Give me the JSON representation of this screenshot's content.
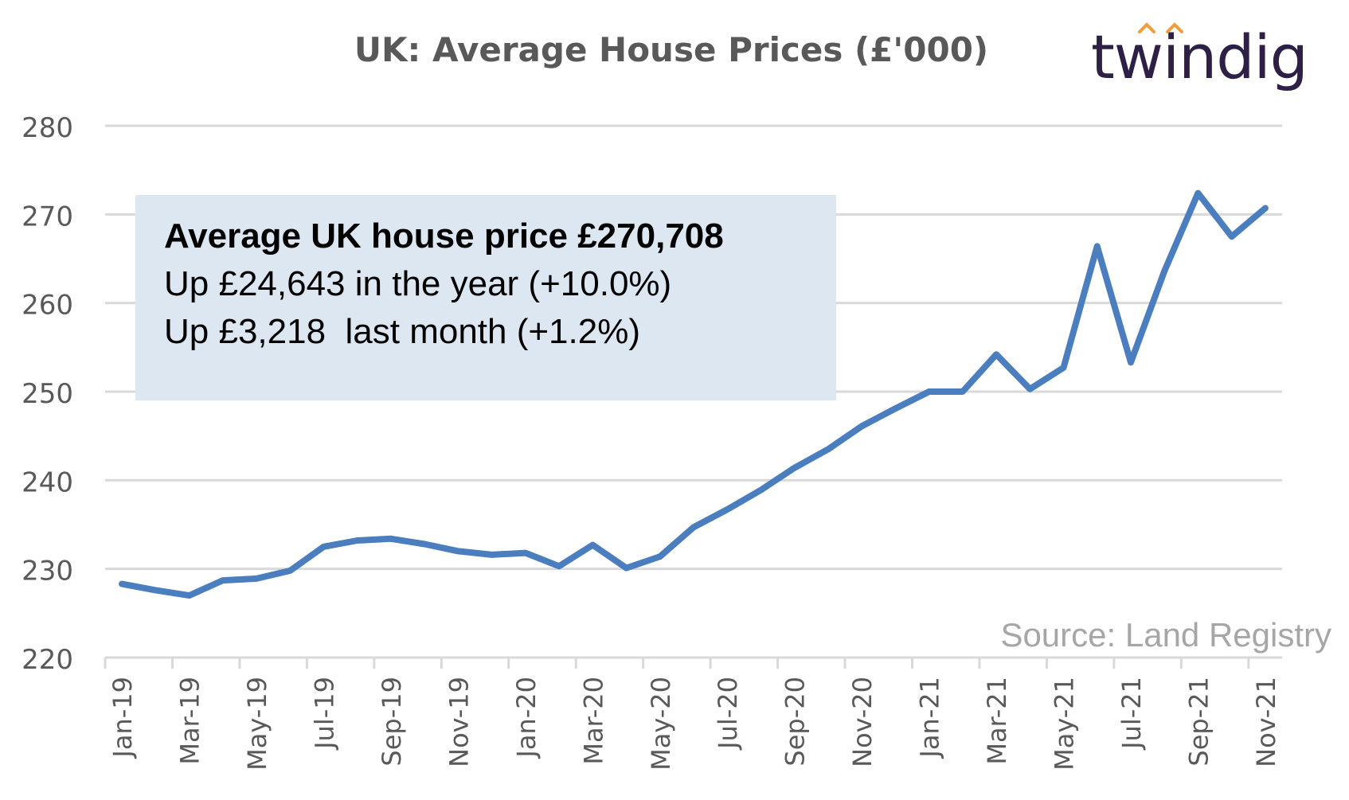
{
  "title": "UK: Average House Prices (£'000)",
  "logo": {
    "text": "twindig",
    "accent_color": "#f39c3c"
  },
  "annotation": {
    "line1": "Average UK house price £270,708",
    "line2": "Up £24,643 in the year (+10.0%)",
    "line3": "Up £3,218  last month (+1.2%)"
  },
  "source": "Source: Land Registry",
  "colors": {
    "line": "#4a7ebf",
    "grid": "#d9d9d9",
    "axis_text": "#595959"
  },
  "chart_data": {
    "type": "line",
    "title": "UK: Average House Prices (£'000)",
    "xlabel": "",
    "ylabel": "",
    "ylim": [
      220,
      280
    ],
    "yticks": [
      220,
      230,
      240,
      250,
      260,
      270,
      280
    ],
    "grid": true,
    "x_tick_labels": [
      "Jan-19",
      "Mar-19",
      "May-19",
      "Jul-19",
      "Sep-19",
      "Nov-19",
      "Jan-20",
      "Mar-20",
      "May-20",
      "Jul-20",
      "Sep-20",
      "Nov-20",
      "Jan-21",
      "Mar-21",
      "May-21",
      "Jul-21",
      "Sep-21",
      "Nov-21"
    ],
    "x": [
      "Jan-19",
      "Feb-19",
      "Mar-19",
      "Apr-19",
      "May-19",
      "Jun-19",
      "Jul-19",
      "Aug-19",
      "Sep-19",
      "Oct-19",
      "Nov-19",
      "Dec-19",
      "Jan-20",
      "Feb-20",
      "Mar-20",
      "Apr-20",
      "May-20",
      "Jun-20",
      "Jul-20",
      "Aug-20",
      "Sep-20",
      "Oct-20",
      "Nov-20",
      "Dec-20",
      "Jan-21",
      "Feb-21",
      "Mar-21",
      "Apr-21",
      "May-21",
      "Jun-21",
      "Jul-21",
      "Aug-21",
      "Sep-21",
      "Oct-21",
      "Nov-21"
    ],
    "series": [
      {
        "values": [
          228.3,
          227.6,
          227.0,
          228.7,
          228.9,
          229.8,
          232.5,
          233.2,
          233.4,
          232.8,
          232.0,
          231.6,
          231.8,
          230.3,
          232.7,
          230.1,
          231.4,
          234.7,
          236.7,
          238.9,
          241.4,
          243.5,
          246.1,
          248.1,
          250.0,
          250.0,
          254.2,
          250.3,
          252.7,
          266.4,
          253.3,
          263.6,
          272.4,
          267.5,
          270.7
        ]
      }
    ]
  }
}
